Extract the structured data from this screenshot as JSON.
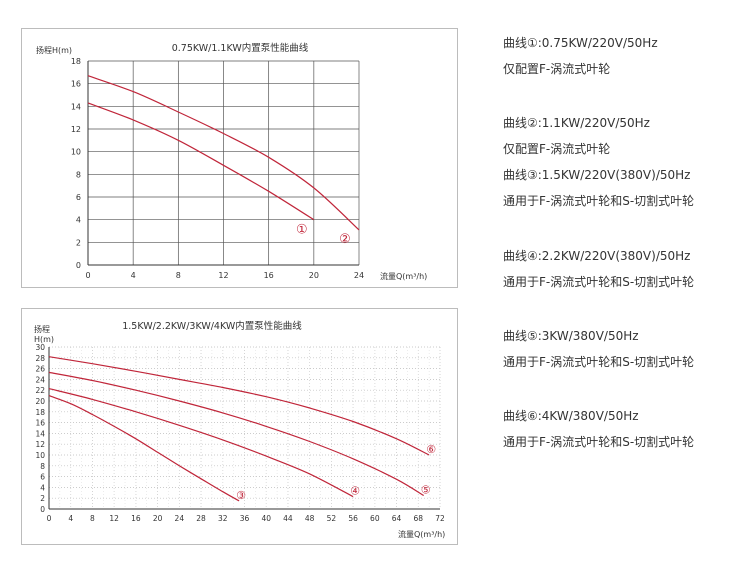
{
  "chart_data": [
    {
      "type": "line",
      "title": "0.75KW/1.1KW内置泵性能曲线",
      "ylabel": "扬程H(m)",
      "xlabel": "流量Q(m³/h)",
      "xlim": [
        0,
        24
      ],
      "ylim": [
        0,
        18
      ],
      "xticks": [
        "0",
        "4",
        "8",
        "12",
        "16",
        "20",
        "24"
      ],
      "yticks": [
        "0",
        "2",
        "4",
        "6",
        "8",
        "10",
        "12",
        "14",
        "16",
        "18"
      ],
      "grid": true,
      "series": [
        {
          "marker": "①",
          "color": "#c0263a",
          "x": [
            0,
            4,
            8,
            12,
            16,
            20
          ],
          "y": [
            14.3,
            12.8,
            11.0,
            8.8,
            6.5,
            4.0
          ]
        },
        {
          "marker": "②",
          "color": "#c0263a",
          "x": [
            0,
            4,
            8,
            12,
            16,
            20,
            24
          ],
          "y": [
            16.7,
            15.3,
            13.5,
            11.6,
            9.5,
            6.8,
            3.1
          ]
        }
      ]
    },
    {
      "type": "line",
      "title": "1.5KW/2.2KW/3KW/4KW内置泵性能曲线",
      "ylabel_line1": "扬程",
      "ylabel_line2": "H(m)",
      "xlabel": "流量Q(m³/h)",
      "xlim": [
        0,
        72
      ],
      "ylim": [
        0,
        30
      ],
      "xticks": [
        "0",
        "4",
        "8",
        "12",
        "16",
        "20",
        "24",
        "28",
        "32",
        "36",
        "40",
        "44",
        "48",
        "52",
        "56",
        "60",
        "64",
        "68",
        "72"
      ],
      "yticks": [
        "0",
        "2",
        "4",
        "6",
        "8",
        "10",
        "12",
        "14",
        "16",
        "18",
        "20",
        "22",
        "24",
        "26",
        "28",
        "30"
      ],
      "grid": true,
      "series": [
        {
          "marker": "③",
          "color": "#c0263a",
          "x": [
            0,
            4,
            8,
            12,
            16,
            20,
            24,
            28,
            32,
            35
          ],
          "y": [
            21.0,
            19.5,
            17.5,
            15.3,
            13.0,
            10.5,
            8.0,
            5.6,
            3.2,
            1.5
          ]
        },
        {
          "marker": "④",
          "color": "#c0263a",
          "x": [
            0,
            8,
            16,
            24,
            32,
            40,
            48,
            56
          ],
          "y": [
            22.3,
            20.3,
            18.0,
            15.5,
            12.8,
            9.8,
            6.5,
            2.3
          ]
        },
        {
          "marker": "⑤",
          "color": "#c0263a",
          "x": [
            0,
            8,
            16,
            24,
            32,
            40,
            48,
            56,
            64,
            69
          ],
          "y": [
            25.3,
            23.8,
            22.0,
            20.0,
            17.8,
            15.3,
            12.5,
            9.3,
            5.5,
            2.5
          ]
        },
        {
          "marker": "⑥",
          "color": "#c0263a",
          "x": [
            0,
            8,
            16,
            24,
            32,
            40,
            48,
            56,
            64,
            70
          ],
          "y": [
            28.2,
            26.9,
            25.5,
            24.0,
            22.5,
            20.8,
            18.7,
            16.2,
            13.0,
            10.0
          ]
        }
      ]
    }
  ],
  "legend": [
    [
      "曲线①:0.75KW/220V/50Hz",
      "仅配置F-涡流式叶轮"
    ],
    [
      "曲线②:1.1KW/220V/50Hz",
      "仅配置F-涡流式叶轮",
      "曲线③:1.5KW/220V(380V)/50Hz",
      "通用于F-涡流式叶轮和S-切割式叶轮"
    ],
    [
      "曲线④:2.2KW/220V(380V)/50Hz",
      "通用于F-涡流式叶轮和S-切割式叶轮"
    ],
    [
      "曲线⑤:3KW/380V/50Hz",
      "通用于F-涡流式叶轮和S-切割式叶轮"
    ],
    [
      "曲线⑥:4KW/380V/50Hz",
      "通用于F-涡流式叶轮和S-切割式叶轮"
    ]
  ]
}
